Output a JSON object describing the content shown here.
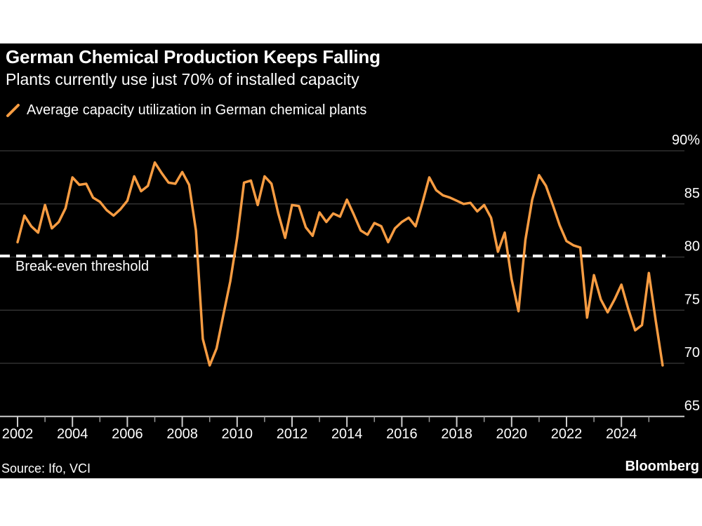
{
  "header": {
    "title": "German Chemical Production Keeps Falling",
    "subtitle": "Plants currently use just 70% of installed capacity"
  },
  "legend": {
    "label": "Average capacity utilization in German chemical plants"
  },
  "footer": {
    "source": "Source: Ifo, VCI",
    "brand": "Bloomberg"
  },
  "colors": {
    "background": "#000000",
    "page": "#ffffff",
    "text": "#ffffff",
    "line": "#F79C42",
    "grid": "#3b3b3b",
    "axis": "#cccccc",
    "minor_tick": "#999999",
    "threshold": "#ffffff"
  },
  "chart_data": {
    "type": "line",
    "title": "German Chemical Production Keeps Falling",
    "subtitle": "Plants currently use just 70% of installed capacity",
    "unit": "%",
    "grid": "horizontal",
    "legend_position": "top-left",
    "ylim": [
      65,
      90
    ],
    "xlim": [
      2002,
      2025.75
    ],
    "y_ticks": [
      90,
      85,
      80,
      75,
      70,
      65
    ],
    "y_tick_labels": [
      "90%",
      "85",
      "80",
      "75",
      "70",
      "65"
    ],
    "x_ticks_major": [
      2002,
      2004,
      2006,
      2008,
      2010,
      2012,
      2014,
      2016,
      2018,
      2020,
      2022,
      2024
    ],
    "x_tick_labels": [
      "2002",
      "2004",
      "2006",
      "2008",
      "2010",
      "2012",
      "2014",
      "2016",
      "2018",
      "2020",
      "2022",
      "2024"
    ],
    "x_ticks_minor": [
      2003,
      2005,
      2007,
      2009,
      2011,
      2013,
      2015,
      2017,
      2019,
      2021,
      2023,
      2025
    ],
    "threshold": {
      "value": 80.1,
      "label": "Break-even threshold",
      "style": "dashed"
    },
    "series": [
      {
        "name": "Average capacity utilization in German chemical plants",
        "x": [
          2002,
          2002.25,
          2002.5,
          2002.75,
          2003,
          2003.25,
          2003.5,
          2003.75,
          2004,
          2004.25,
          2004.5,
          2004.75,
          2005,
          2005.25,
          2005.5,
          2005.75,
          2006,
          2006.25,
          2006.5,
          2006.75,
          2007,
          2007.25,
          2007.5,
          2007.75,
          2008,
          2008.25,
          2008.5,
          2008.75,
          2009,
          2009.25,
          2009.5,
          2009.75,
          2010,
          2010.25,
          2010.5,
          2010.75,
          2011,
          2011.25,
          2011.5,
          2011.75,
          2012,
          2012.25,
          2012.5,
          2012.75,
          2013,
          2013.25,
          2013.5,
          2013.75,
          2014,
          2014.25,
          2014.5,
          2014.75,
          2015,
          2015.25,
          2015.5,
          2015.75,
          2016,
          2016.25,
          2016.5,
          2016.75,
          2017,
          2017.25,
          2017.5,
          2017.75,
          2018,
          2018.25,
          2018.5,
          2018.75,
          2019,
          2019.25,
          2019.5,
          2019.75,
          2020,
          2020.25,
          2020.5,
          2020.75,
          2021,
          2021.25,
          2021.5,
          2021.75,
          2022,
          2022.25,
          2022.5,
          2022.75,
          2023,
          2023.25,
          2023.5,
          2023.75,
          2024,
          2024.25,
          2024.5,
          2024.75,
          2025,
          2025.25,
          2025.5
        ],
        "values": [
          81.4,
          83.9,
          82.9,
          82.3,
          84.9,
          82.7,
          83.3,
          84.6,
          87.5,
          86.8,
          86.9,
          85.6,
          85.2,
          84.4,
          83.9,
          84.5,
          85.3,
          87.6,
          86.2,
          86.7,
          88.9,
          87.9,
          87.0,
          86.9,
          88.0,
          86.8,
          82.5,
          72.3,
          69.8,
          71.4,
          74.6,
          77.7,
          81.8,
          87.0,
          87.2,
          84.9,
          87.6,
          86.9,
          84.1,
          81.8,
          84.9,
          84.8,
          82.8,
          82.0,
          84.2,
          83.3,
          84.1,
          83.8,
          85.4,
          84.0,
          82.5,
          82.1,
          83.2,
          82.9,
          81.4,
          82.7,
          83.3,
          83.7,
          82.9,
          85.1,
          87.5,
          86.3,
          85.8,
          85.6,
          85.3,
          85.0,
          85.1,
          84.3,
          84.9,
          83.7,
          80.5,
          82.3,
          77.9,
          74.9,
          81.6,
          85.4,
          87.7,
          86.7,
          84.9,
          83.0,
          81.5,
          81.1,
          80.9,
          74.3,
          78.3,
          76.0,
          74.8,
          76.0,
          77.4,
          75.1,
          73.1,
          73.6,
          78.5,
          74.0,
          69.8
        ]
      }
    ]
  }
}
